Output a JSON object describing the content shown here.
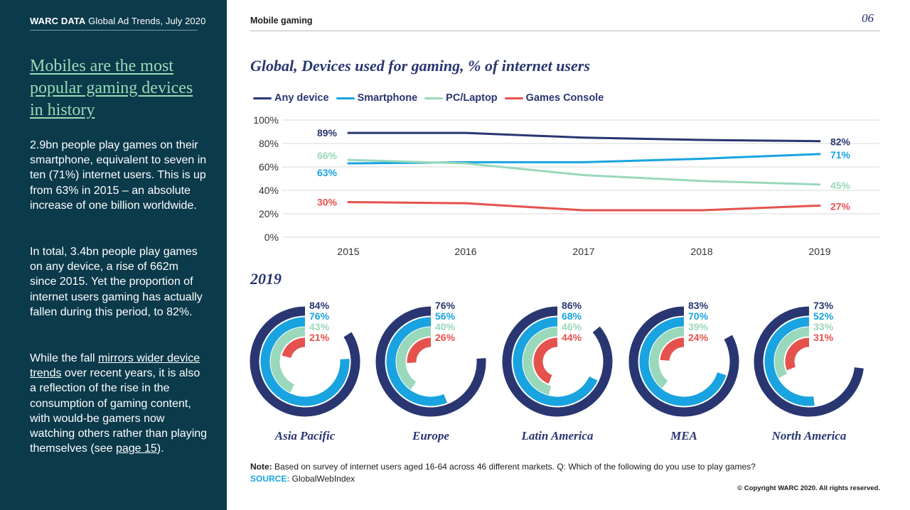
{
  "header": {
    "brand_bold": "WARC DATA",
    "brand_rest": " Global Ad Trends, July 2020",
    "section": "Mobile gaming",
    "page_number": "06"
  },
  "sidebar": {
    "headline": "Mobiles are the most popular gaming devices in history",
    "para1": "2.9bn people play games on their smartphone, equivalent to seven in ten (71%) internet users. This is up from 63% in 2015 – an absolute increase of one billion worldwide.",
    "para2": "In total, 3.4bn people play games on any device, a rise of 662m since 2015. Yet the proportion of internet users gaming has actually fallen during this period, to 82%.",
    "para3_a": "While the fall ",
    "para3_link": "mirrors wider device trends",
    "para3_b": " over recent years, it is also a reflection of the rise in the consumption of gaming content, with would-be gamers now watching others rather than playing themselves (see ",
    "para3_link2": "page 15",
    "para3_c": ")."
  },
  "colors": {
    "sidebar_bg": "#0b3a4b",
    "any_device": "#2a3671",
    "smartphone": "#19a3e0",
    "pc_laptop": "#9ad8bb",
    "games_console": "#e5524d"
  },
  "chart_data": [
    {
      "type": "line",
      "title": "Global, Devices used for gaming, % of internet users",
      "x": [
        "2015",
        "2016",
        "2017",
        "2018",
        "2019"
      ],
      "ylim": [
        0,
        100
      ],
      "yticks": [
        "0%",
        "20%",
        "40%",
        "60%",
        "80%",
        "100%"
      ],
      "ytick_values": [
        0,
        20,
        40,
        60,
        80,
        100
      ],
      "grid": true,
      "legend": "top-left",
      "series": [
        {
          "name": "Any device",
          "color": "#2a3671",
          "values": [
            89,
            89,
            85,
            83,
            82
          ],
          "start_label": "89%",
          "end_label": "82%"
        },
        {
          "name": "Smartphone",
          "color": "#19a3e0",
          "values": [
            63,
            64,
            64,
            67,
            71
          ],
          "start_label": "63%",
          "end_label": "71%"
        },
        {
          "name": "PC/Laptop",
          "color": "#9ad8bb",
          "values": [
            66,
            63,
            53,
            48,
            45
          ],
          "start_label": "66%",
          "end_label": "45%"
        },
        {
          "name": "Games Console",
          "color": "#e5524d",
          "values": [
            30,
            29,
            23,
            23,
            27
          ],
          "start_label": "30%",
          "end_label": "27%"
        }
      ]
    },
    {
      "type": "radial-bar",
      "title": "2019",
      "series_names": [
        "Any device",
        "Smartphone",
        "PC/Laptop",
        "Games Console"
      ],
      "regions": [
        {
          "name": "Asia Pacific",
          "values": [
            84,
            76,
            43,
            21
          ],
          "labels": [
            "84%",
            "76%",
            "43%",
            "21%"
          ]
        },
        {
          "name": "Europe",
          "values": [
            76,
            56,
            40,
            26
          ],
          "labels": [
            "76%",
            "56%",
            "40%",
            "26%"
          ]
        },
        {
          "name": "Latin America",
          "values": [
            86,
            68,
            46,
            44
          ],
          "labels": [
            "86%",
            "68%",
            "46%",
            "44%"
          ]
        },
        {
          "name": "MEA",
          "values": [
            83,
            70,
            39,
            24
          ],
          "labels": [
            "83%",
            "70%",
            "39%",
            "24%"
          ]
        },
        {
          "name": "North America",
          "values": [
            73,
            52,
            33,
            31
          ],
          "labels": [
            "73%",
            "52%",
            "33%",
            "31%"
          ]
        }
      ]
    }
  ],
  "footer": {
    "note_bold": "Note:",
    "note_text": " Based on survey of internet users aged 16-64 across 46 different markets. Q: Which of the following do you use to play games?",
    "source_bold": "SOURCE:",
    "source_text": " GlobalWebIndex",
    "copyright": "© Copyright WARC 2020. All rights reserved."
  }
}
